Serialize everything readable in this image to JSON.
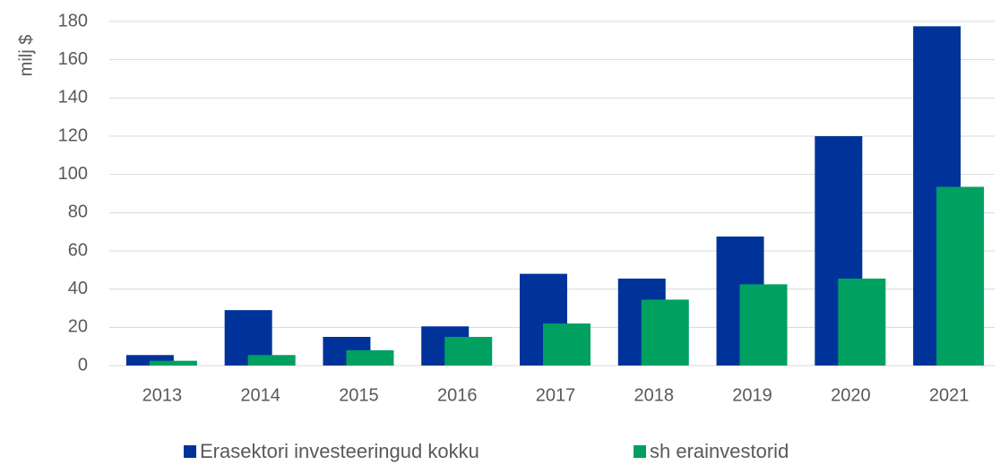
{
  "chart_data": {
    "type": "bar",
    "y_label": "milj $",
    "categories": [
      "2013",
      "2014",
      "2015",
      "2016",
      "2017",
      "2018",
      "2019",
      "2020",
      "2021"
    ],
    "series": [
      {
        "name": "Erasektori investeeringud kokku",
        "color": "#003399",
        "values": [
          5.5,
          29,
          15,
          20.5,
          48,
          45.5,
          67.5,
          120,
          177.5
        ]
      },
      {
        "name": "sh erainvestorid",
        "color": "#00a060",
        "values": [
          2.5,
          5.5,
          8,
          15,
          22,
          34.5,
          42.5,
          45.5,
          93.5
        ]
      }
    ],
    "ylim": [
      0,
      180
    ],
    "yticks": [
      0,
      20,
      40,
      60,
      80,
      100,
      120,
      140,
      160,
      180
    ],
    "grid": true
  }
}
